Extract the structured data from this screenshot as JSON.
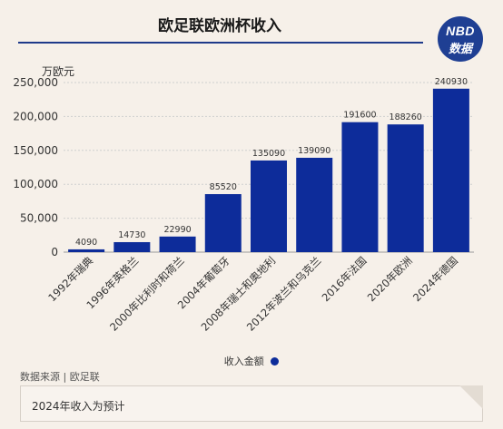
{
  "title": "欧足联欧洲杯收入",
  "logo": {
    "line1": "NBD",
    "line2": "数据"
  },
  "unit": "万欧元",
  "legend_label": "收入金额",
  "source": "数据来源 | 欧足联",
  "note": "2024年收入为预计",
  "colors": {
    "bar": "#0d2c9a",
    "accent": "#1e3a8a",
    "background": "#f6f0e9"
  },
  "chart_data": {
    "type": "bar",
    "categories": [
      "1992年瑞典",
      "1996年英格兰",
      "2000年比利时和荷兰",
      "2004年葡萄牙",
      "2008年瑞士和奥地利",
      "2012年波兰和乌克兰",
      "2016年法国",
      "2020年欧洲",
      "2024年德国"
    ],
    "series": [
      {
        "name": "收入金额",
        "values": [
          4090,
          14730,
          22990,
          85520,
          135090,
          139090,
          191600,
          188260,
          240930
        ]
      }
    ],
    "ylabel": "万欧元",
    "ylim": [
      0,
      250000
    ],
    "yticks": [
      0,
      50000,
      100000,
      150000,
      200000,
      250000
    ],
    "ytick_labels": [
      "0",
      "50,000",
      "100,000",
      "150,000",
      "200,000",
      "250,000"
    ],
    "grid": true,
    "legend_position": "bottom"
  }
}
